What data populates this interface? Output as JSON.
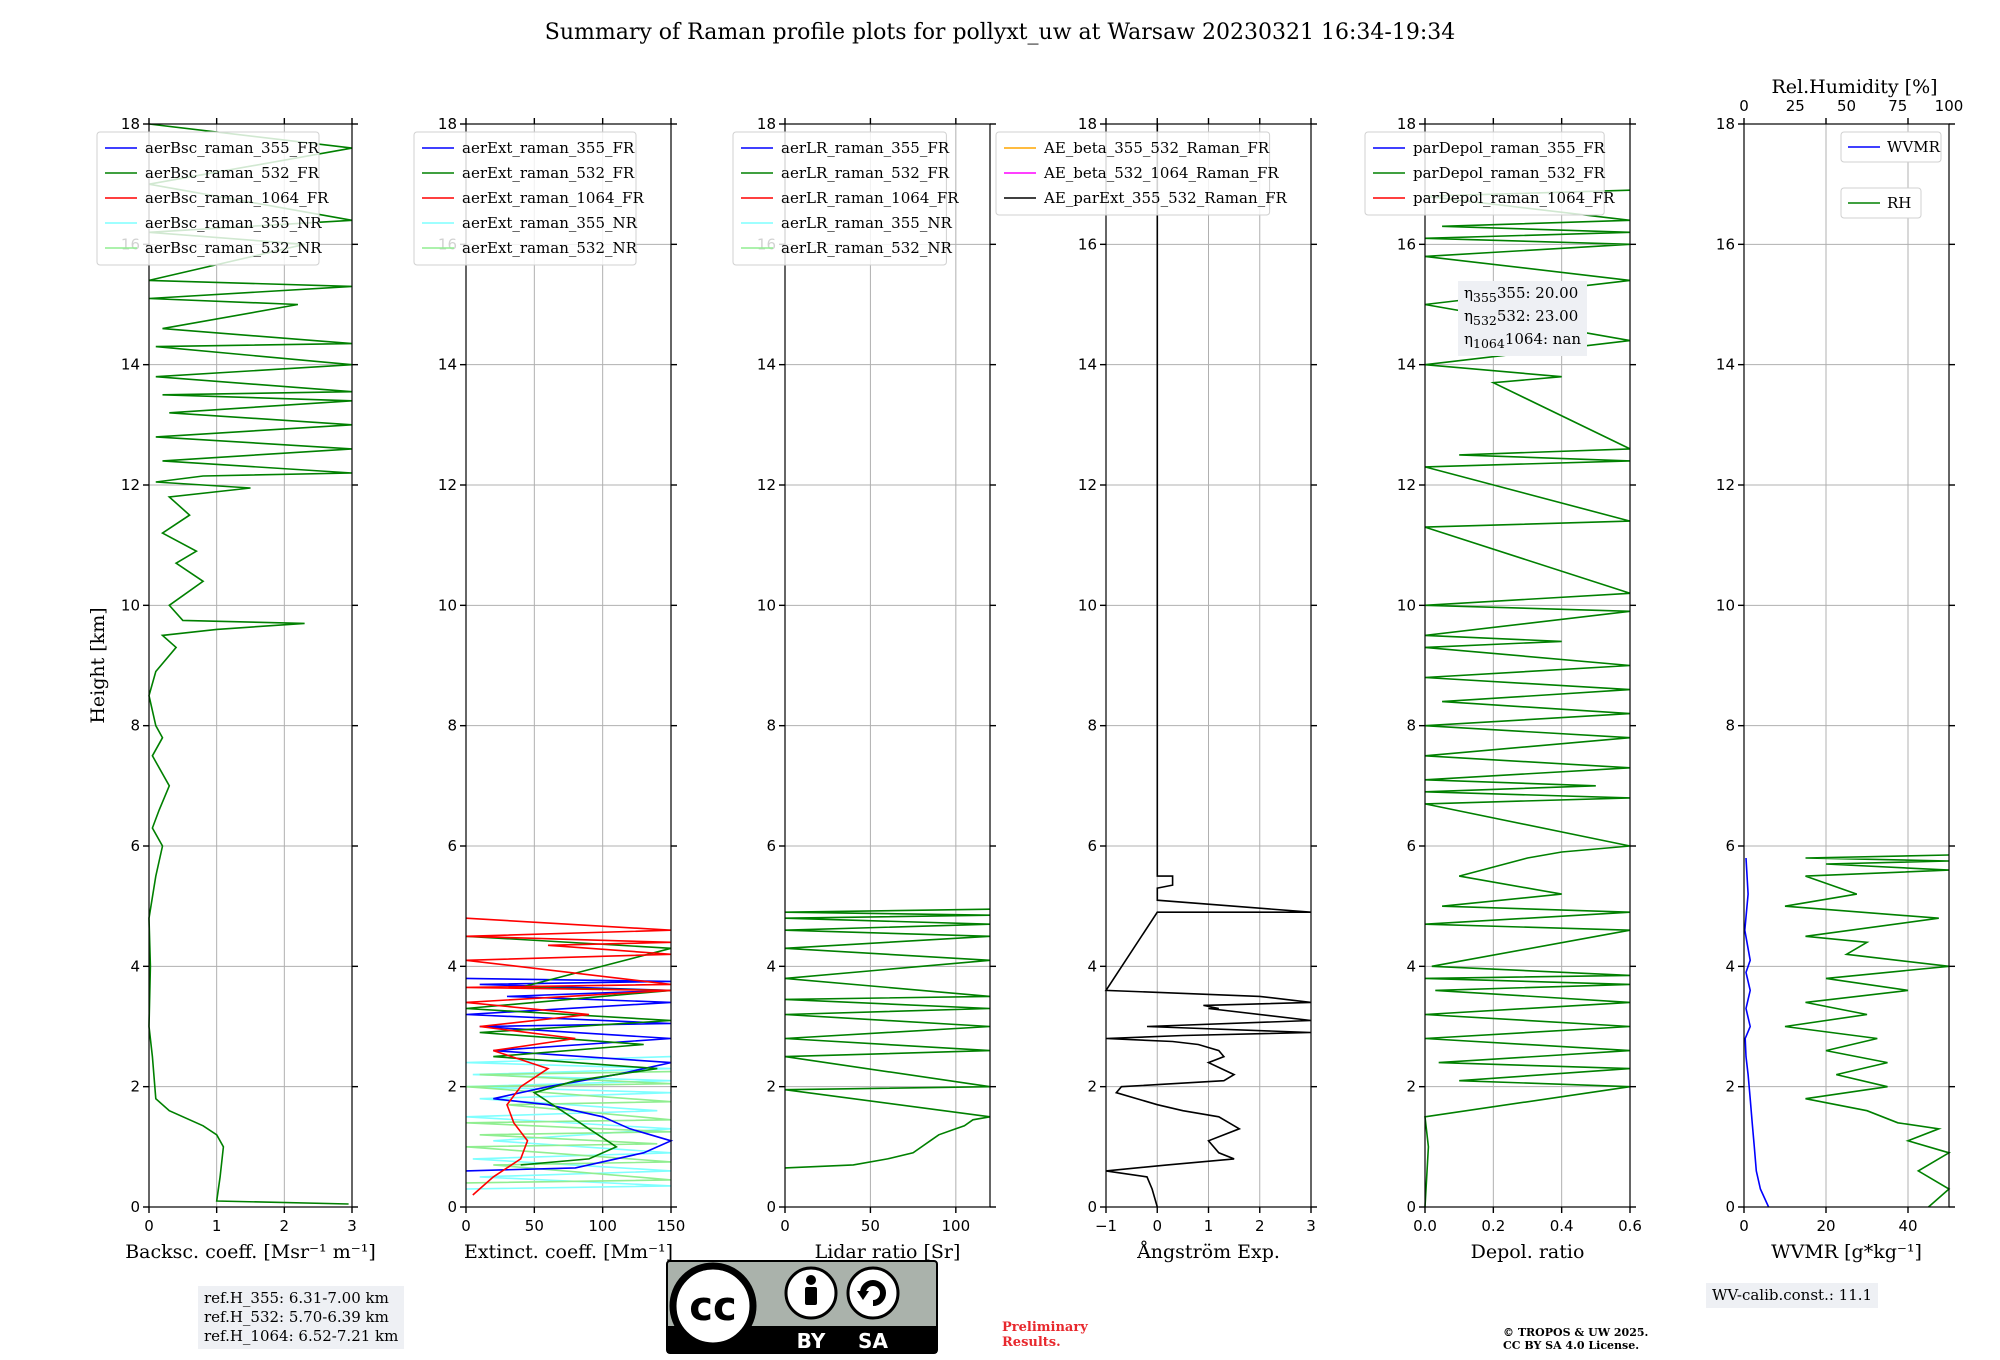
{
  "title": "Summary of Raman profile plots for pollyxt_uw at Warsaw 20230321 16:34-19:34",
  "colors": {
    "blue": "#0000ff",
    "green": "#008000",
    "red": "#ff0000",
    "cyan": "#7fffff",
    "lightgreen": "#90ee90",
    "orange": "#ffa500",
    "magenta": "#ff00ff",
    "black": "#000000",
    "grid": "#b0b0b0",
    "box": "#eef0f4",
    "prelim": "#e8282d"
  },
  "chart_data": [
    {
      "type": "line",
      "id": "bsc",
      "xlabel": "Backsc. coeff. [Msr⁻¹ m⁻¹]",
      "ylabel": "Height [km]",
      "xlim": [
        0,
        3
      ],
      "ylim": [
        0,
        18
      ],
      "xticks": [
        0,
        1,
        2,
        3
      ],
      "yticks": [
        0,
        2,
        4,
        6,
        8,
        10,
        12,
        14,
        16,
        18
      ],
      "grid": true,
      "legend": "top-left",
      "legend_entries": [
        {
          "name": "aerBsc_raman_355_FR",
          "color": "blue"
        },
        {
          "name": "aerBsc_raman_532_FR",
          "color": "green"
        },
        {
          "name": "aerBsc_raman_1064_FR",
          "color": "red"
        },
        {
          "name": "aerBsc_raman_355_NR",
          "color": "cyan"
        },
        {
          "name": "aerBsc_raman_532_NR",
          "color": "lightgreen"
        }
      ],
      "series": [
        {
          "name": "aerBsc_raman_532_FR",
          "color": "green",
          "x": [
            2.95,
            1.0,
            1.05,
            1.1,
            1.0,
            0.8,
            0.3,
            0.1,
            0.05,
            0.0,
            0.02,
            0.0,
            0.1,
            0.2,
            0.05,
            0.15,
            0.3,
            0.05,
            0.2,
            0.1,
            0.0,
            0.1,
            0.4,
            0.2,
            1.0,
            2.3,
            0.5,
            0.3,
            0.8,
            0.4,
            0.7,
            0.2,
            0.6,
            0.3,
            1.5,
            0.1,
            0.8,
            3.0,
            0.2,
            3.0,
            0.1,
            3.0,
            0.3,
            3.0,
            0.2,
            3.0,
            0.1,
            3.0,
            0.1,
            3.0,
            0.2,
            2.2,
            0.0,
            3.0,
            0.0,
            2.3,
            0.0,
            3.0,
            0.0,
            3.0,
            0.0
          ],
          "y": [
            0.05,
            0.1,
            0.5,
            1.0,
            1.2,
            1.35,
            1.6,
            1.8,
            2.5,
            3.0,
            4.0,
            4.8,
            5.5,
            6.0,
            6.3,
            6.6,
            7.0,
            7.5,
            7.8,
            8.0,
            8.5,
            8.9,
            9.3,
            9.5,
            9.6,
            9.7,
            9.75,
            10.0,
            10.4,
            10.7,
            10.9,
            11.2,
            11.5,
            11.8,
            11.95,
            12.05,
            12.15,
            12.2,
            12.4,
            12.6,
            12.8,
            13.0,
            13.2,
            13.4,
            13.5,
            13.55,
            13.8,
            14.0,
            14.3,
            14.35,
            14.6,
            15.0,
            15.1,
            15.3,
            15.4,
            16.0,
            16.2,
            16.4,
            17.0,
            17.6,
            18.0
          ]
        }
      ],
      "annotation": [
        "ref.H_355: 6.31-7.00 km",
        "ref.H_532: 5.70-6.39 km",
        "ref.H_1064: 6.52-7.21 km"
      ]
    },
    {
      "type": "line",
      "id": "ext",
      "xlabel": "Extinct. coeff. [Mm⁻¹]",
      "xlim": [
        0,
        150
      ],
      "ylim": [
        0,
        18
      ],
      "xticks": [
        0,
        50,
        100,
        150
      ],
      "yticks": [
        0,
        2,
        4,
        6,
        8,
        10,
        12,
        14,
        16,
        18
      ],
      "grid": true,
      "legend": "top-left",
      "legend_entries": [
        {
          "name": "aerExt_raman_355_FR",
          "color": "blue"
        },
        {
          "name": "aerExt_raman_532_FR",
          "color": "green"
        },
        {
          "name": "aerExt_raman_1064_FR",
          "color": "red"
        },
        {
          "name": "aerExt_raman_355_NR",
          "color": "cyan"
        },
        {
          "name": "aerExt_raman_532_NR",
          "color": "lightgreen"
        }
      ],
      "series": [
        {
          "name": "aerExt_raman_355_NR",
          "color": "cyan",
          "x": [
            0,
            150,
            10,
            150,
            5,
            150,
            20,
            150,
            0,
            140,
            10,
            150,
            0,
            150,
            5,
            150,
            0,
            150
          ],
          "y": [
            0.3,
            0.35,
            0.5,
            0.6,
            0.8,
            0.9,
            1.1,
            1.3,
            1.5,
            1.6,
            1.8,
            1.9,
            2.0,
            2.1,
            2.2,
            2.3,
            2.4,
            2.5
          ]
        },
        {
          "name": "aerExt_raman_532_NR",
          "color": "lightgreen",
          "x": [
            0,
            150,
            20,
            150,
            0,
            140,
            10,
            150,
            0,
            150,
            30,
            150,
            0,
            150,
            10,
            150
          ],
          "y": [
            0.4,
            0.45,
            0.7,
            0.75,
            1.0,
            1.05,
            1.2,
            1.25,
            1.4,
            1.45,
            1.7,
            1.75,
            2.0,
            2.05,
            2.2,
            2.25
          ]
        },
        {
          "name": "aerExt_raman_355_FR",
          "color": "blue",
          "x": [
            0,
            80,
            130,
            150,
            120,
            100,
            60,
            20,
            60,
            110,
            150,
            20,
            150,
            10,
            150,
            0,
            150,
            30,
            150,
            10,
            150,
            0
          ],
          "y": [
            0.6,
            0.65,
            0.9,
            1.1,
            1.3,
            1.5,
            1.7,
            1.8,
            2.0,
            2.2,
            2.4,
            2.6,
            2.8,
            3.0,
            3.05,
            3.2,
            3.4,
            3.5,
            3.6,
            3.7,
            3.75,
            3.8
          ]
        },
        {
          "name": "aerExt_raman_532_FR",
          "color": "green",
          "x": [
            40,
            90,
            110,
            90,
            70,
            50,
            80,
            140,
            20,
            130,
            10,
            150,
            0,
            150,
            40,
            150,
            0
          ],
          "y": [
            0.7,
            0.8,
            1.0,
            1.3,
            1.6,
            1.9,
            2.1,
            2.3,
            2.5,
            2.7,
            2.9,
            3.1,
            3.3,
            3.6,
            3.65,
            4.3,
            4.5
          ]
        },
        {
          "name": "aerExt_raman_1064_FR",
          "color": "red",
          "x": [
            5,
            20,
            40,
            45,
            35,
            30,
            40,
            60,
            20,
            80,
            10,
            90,
            0,
            150,
            0,
            150,
            0,
            150,
            60,
            150,
            0,
            150,
            0
          ],
          "y": [
            0.2,
            0.5,
            0.8,
            1.1,
            1.4,
            1.7,
            2.0,
            2.3,
            2.6,
            2.8,
            3.0,
            3.2,
            3.4,
            3.6,
            3.65,
            3.7,
            4.1,
            4.2,
            4.35,
            4.4,
            4.5,
            4.6,
            4.8
          ]
        }
      ]
    },
    {
      "type": "line",
      "id": "lr",
      "xlabel": "Lidar ratio [Sr]",
      "xlim": [
        0,
        120
      ],
      "ylim": [
        0,
        18
      ],
      "xticks": [
        0,
        50,
        100
      ],
      "yticks": [
        0,
        2,
        4,
        6,
        8,
        10,
        12,
        14,
        16,
        18
      ],
      "grid": true,
      "legend": "top-left",
      "legend_entries": [
        {
          "name": "aerLR_raman_355_FR",
          "color": "blue"
        },
        {
          "name": "aerLR_raman_532_FR",
          "color": "green"
        },
        {
          "name": "aerLR_raman_1064_FR",
          "color": "red"
        },
        {
          "name": "aerLR_raman_355_NR",
          "color": "cyan"
        },
        {
          "name": "aerLR_raman_532_NR",
          "color": "lightgreen"
        }
      ],
      "series": [
        {
          "name": "aerLR_raman_532_FR",
          "color": "green",
          "x": [
            0,
            40,
            60,
            75,
            85,
            90,
            100,
            105,
            110,
            120,
            0,
            120,
            0,
            120,
            0,
            120,
            0,
            120,
            0,
            120,
            0,
            120,
            0,
            120,
            0,
            120,
            0,
            120,
            0,
            120
          ],
          "y": [
            0.65,
            0.7,
            0.8,
            0.9,
            1.1,
            1.2,
            1.3,
            1.35,
            1.45,
            1.5,
            1.95,
            2.0,
            2.5,
            2.6,
            2.8,
            3.0,
            3.2,
            3.3,
            3.45,
            3.5,
            3.8,
            4.1,
            4.3,
            4.5,
            4.6,
            4.7,
            4.8,
            4.85,
            4.9,
            4.95
          ]
        }
      ]
    },
    {
      "type": "line",
      "id": "ae",
      "xlabel": "Ångström Exp.",
      "xlim": [
        -1,
        3
      ],
      "ylim": [
        0,
        18
      ],
      "xticks": [
        -1,
        0,
        1,
        2,
        3
      ],
      "yticks": [
        0,
        2,
        4,
        6,
        8,
        10,
        12,
        14,
        16,
        18
      ],
      "grid": true,
      "legend": "top-right",
      "legend_entries": [
        {
          "name": "AE_beta_355_532_Raman_FR",
          "color": "orange"
        },
        {
          "name": "AE_beta_532_1064_Raman_FR",
          "color": "magenta"
        },
        {
          "name": "AE_parExt_355_532_Raman_FR",
          "color": "black"
        }
      ],
      "series": [
        {
          "name": "AE_parExt_355_532_Raman_FR",
          "color": "black",
          "x": [
            0.0,
            -0.1,
            -0.2,
            -1.0,
            0.2,
            1.5,
            1.2,
            1.0,
            1.6,
            1.2,
            0.5,
            0.0,
            -0.8,
            -0.7,
            1.3,
            1.5,
            1.0,
            1.3,
            1.2,
            0.8,
            0.3,
            -1.0,
            0.5,
            3.0,
            -0.2,
            3.0,
            1.0,
            1.2,
            0.9,
            3.0,
            2.0,
            -1.0,
            0.0,
            3.0,
            0.0,
            0.0,
            0.3,
            0.3,
            0.0,
            0.0
          ],
          "y": [
            0.0,
            0.3,
            0.5,
            0.6,
            0.7,
            0.8,
            0.9,
            1.1,
            1.3,
            1.5,
            1.6,
            1.7,
            1.9,
            2.0,
            2.1,
            2.2,
            2.4,
            2.5,
            2.6,
            2.7,
            2.75,
            2.8,
            2.85,
            2.9,
            3.0,
            3.1,
            3.3,
            3.3,
            3.35,
            3.4,
            3.5,
            3.6,
            4.9,
            4.9,
            5.1,
            5.3,
            5.35,
            5.5,
            5.5,
            18.0
          ]
        }
      ]
    },
    {
      "type": "line",
      "id": "depol",
      "xlabel": "Depol. ratio",
      "xlim": [
        0,
        0.6
      ],
      "ylim": [
        0,
        18
      ],
      "xticks": [
        0.0,
        0.2,
        0.4,
        0.6
      ],
      "yticks": [
        0,
        2,
        4,
        6,
        8,
        10,
        12,
        14,
        16,
        18
      ],
      "grid": true,
      "legend": "top-left",
      "legend_entries": [
        {
          "name": "parDepol_raman_355_FR",
          "color": "blue"
        },
        {
          "name": "parDepol_raman_532_FR",
          "color": "green"
        },
        {
          "name": "parDepol_raman_1064_FR",
          "color": "red"
        }
      ],
      "series": [
        {
          "name": "parDepol_raman_532_FR",
          "color": "green",
          "x": [
            0.0,
            0.005,
            0.01,
            0.0,
            0.6,
            0.1,
            0.6,
            0.04,
            0.6,
            0.0,
            0.6,
            0.0,
            0.6,
            0.03,
            0.6,
            0.0,
            0.6,
            0.02,
            0.6,
            0.0,
            0.6,
            0.05,
            0.4,
            0.1,
            0.3,
            0.4,
            0.6,
            0.0,
            0.6,
            0.0,
            0.5,
            0.0,
            0.6,
            0.0,
            0.6,
            0.0,
            0.6,
            0.05,
            0.6,
            0.0,
            0.6,
            0.0,
            0.4,
            0.0,
            0.6,
            0.0,
            0.6,
            0.0,
            0.6,
            0.0,
            0.6,
            0.1,
            0.6,
            0.2,
            0.4,
            0.0,
            0.6,
            0.0,
            0.6,
            0.0,
            0.6,
            0.0,
            0.6,
            0.05,
            0.6,
            0.0,
            0.6
          ],
          "y": [
            0.0,
            0.5,
            1.0,
            1.5,
            2.0,
            2.1,
            2.3,
            2.4,
            2.6,
            2.8,
            3.0,
            3.2,
            3.4,
            3.6,
            3.7,
            3.8,
            3.85,
            4.0,
            4.6,
            4.7,
            4.9,
            5.0,
            5.2,
            5.5,
            5.8,
            5.9,
            6.0,
            6.7,
            6.8,
            6.9,
            7.0,
            7.1,
            7.3,
            7.5,
            7.8,
            8.0,
            8.2,
            8.4,
            8.6,
            8.8,
            9.0,
            9.3,
            9.4,
            9.5,
            9.9,
            10.0,
            10.2,
            11.3,
            11.4,
            12.3,
            12.4,
            12.5,
            12.6,
            13.7,
            13.8,
            14.0,
            14.4,
            15.0,
            15.4,
            15.8,
            16.0,
            16.1,
            16.2,
            16.3,
            16.4,
            16.8,
            16.9
          ]
        }
      ],
      "annotation": [
        "355: 20.00",
        "532: 23.00",
        "1064: nan"
      ]
    },
    {
      "type": "line",
      "id": "wv",
      "xlabel": "WVMR [g*kg⁻¹]",
      "x2label": "Rel.Humidity [%]",
      "xlim": [
        0,
        50
      ],
      "x2lim": [
        0,
        100
      ],
      "ylim": [
        0,
        18
      ],
      "xticks": [
        0,
        20,
        40
      ],
      "x2ticks": [
        0,
        25,
        50,
        75,
        100
      ],
      "yticks": [
        0,
        2,
        4,
        6,
        8,
        10,
        12,
        14,
        16,
        18
      ],
      "grid": true,
      "legend": "top-right",
      "legend_entries": [
        {
          "name": "WVMR",
          "color": "blue"
        },
        {
          "name": "RH",
          "color": "green"
        }
      ],
      "series": [
        {
          "name": "WVMR",
          "color": "blue",
          "axis": "x",
          "x": [
            6,
            4,
            3,
            2.5,
            2,
            1.5,
            1,
            0.5,
            0.3,
            1.5,
            0.5,
            1.5,
            0.5,
            1.5,
            0.2,
            1.0,
            0.5
          ],
          "y": [
            0.0,
            0.3,
            0.6,
            1.0,
            1.4,
            1.8,
            2.2,
            2.5,
            2.8,
            3.0,
            3.3,
            3.6,
            3.9,
            4.1,
            4.6,
            5.2,
            5.8
          ]
        },
        {
          "name": "RH",
          "color": "green",
          "axis": "x2",
          "x": [
            90,
            100,
            85,
            100,
            80,
            95,
            75,
            60,
            30,
            70,
            45,
            70,
            40,
            65,
            20,
            60,
            30,
            80,
            40,
            100,
            50,
            60,
            30,
            95,
            20,
            55,
            30,
            100,
            40,
            100,
            30,
            100
          ],
          "y": [
            0.0,
            0.3,
            0.6,
            0.9,
            1.1,
            1.3,
            1.4,
            1.6,
            1.8,
            2.0,
            2.2,
            2.4,
            2.6,
            2.8,
            3.0,
            3.2,
            3.4,
            3.6,
            3.8,
            4.0,
            4.2,
            4.4,
            4.5,
            4.8,
            5.0,
            5.2,
            5.5,
            5.6,
            5.7,
            5.75,
            5.8,
            5.85
          ]
        }
      ],
      "annotation": [
        "WV-calib.const.: 11.1"
      ]
    }
  ],
  "license": {
    "cc": "cc",
    "by": "BY",
    "sa": "SA",
    "prelim": [
      "Preliminary",
      "Results."
    ],
    "copyright": [
      "© TROPOS & UW 2025.",
      "CC BY SA 4.0 License."
    ]
  }
}
